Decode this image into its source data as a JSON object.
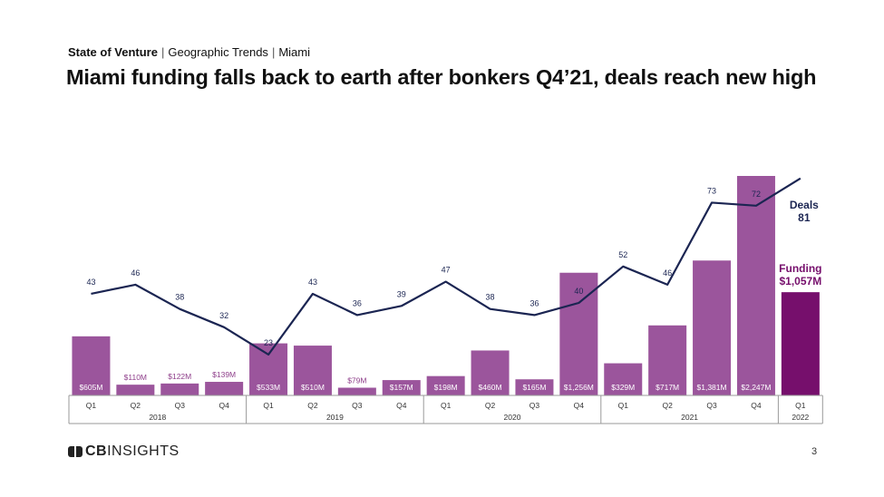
{
  "header": {
    "report": "State of Venture",
    "section": "Geographic Trends",
    "region": "Miami"
  },
  "title": "Miami funding falls back to earth after bonkers Q4’21, deals reach new high",
  "chart_data": {
    "type": "bar",
    "quarters": [
      "Q1",
      "Q2",
      "Q3",
      "Q4",
      "Q1",
      "Q2",
      "Q3",
      "Q4",
      "Q1",
      "Q2",
      "Q3",
      "Q4",
      "Q1",
      "Q2",
      "Q3",
      "Q4",
      "Q1"
    ],
    "years": [
      {
        "label": "2018",
        "count": 4
      },
      {
        "label": "2019",
        "count": 4
      },
      {
        "label": "2020",
        "count": 4
      },
      {
        "label": "2021",
        "count": 4
      },
      {
        "label": "2022",
        "count": 1
      }
    ],
    "series": [
      {
        "name": "Funding",
        "values": [
          605,
          110,
          122,
          139,
          533,
          510,
          79,
          157,
          198,
          460,
          165,
          1256,
          329,
          717,
          1381,
          2247,
          1057
        ],
        "labels": [
          "$605M",
          "$110M",
          "$122M",
          "$139M",
          "$533M",
          "$510M",
          "$79M",
          "$157M",
          "$198M",
          "$460M",
          "$165M",
          "$1,256M",
          "$329M",
          "$717M",
          "$1,381M",
          "$2,247M",
          "$1,057M"
        ]
      },
      {
        "name": "Deals",
        "values": [
          43,
          46,
          38,
          32,
          23,
          43,
          36,
          39,
          47,
          38,
          36,
          40,
          52,
          46,
          73,
          72,
          81
        ]
      }
    ],
    "callouts": {
      "deals_label": "Deals",
      "deals_value": "81",
      "funding_label": "Funding",
      "funding_value": "$1,057M"
    },
    "colors": {
      "bar": "#9b559c",
      "bar_highlight": "#760f6c",
      "line": "#1b2552",
      "outside_label": "#8e3e8a",
      "inside_label": "#ffffff",
      "deal_label": "#1b2552"
    }
  },
  "footer": {
    "brand_cb": "CB",
    "brand_rest": "INSIGHTS",
    "page": "3"
  }
}
